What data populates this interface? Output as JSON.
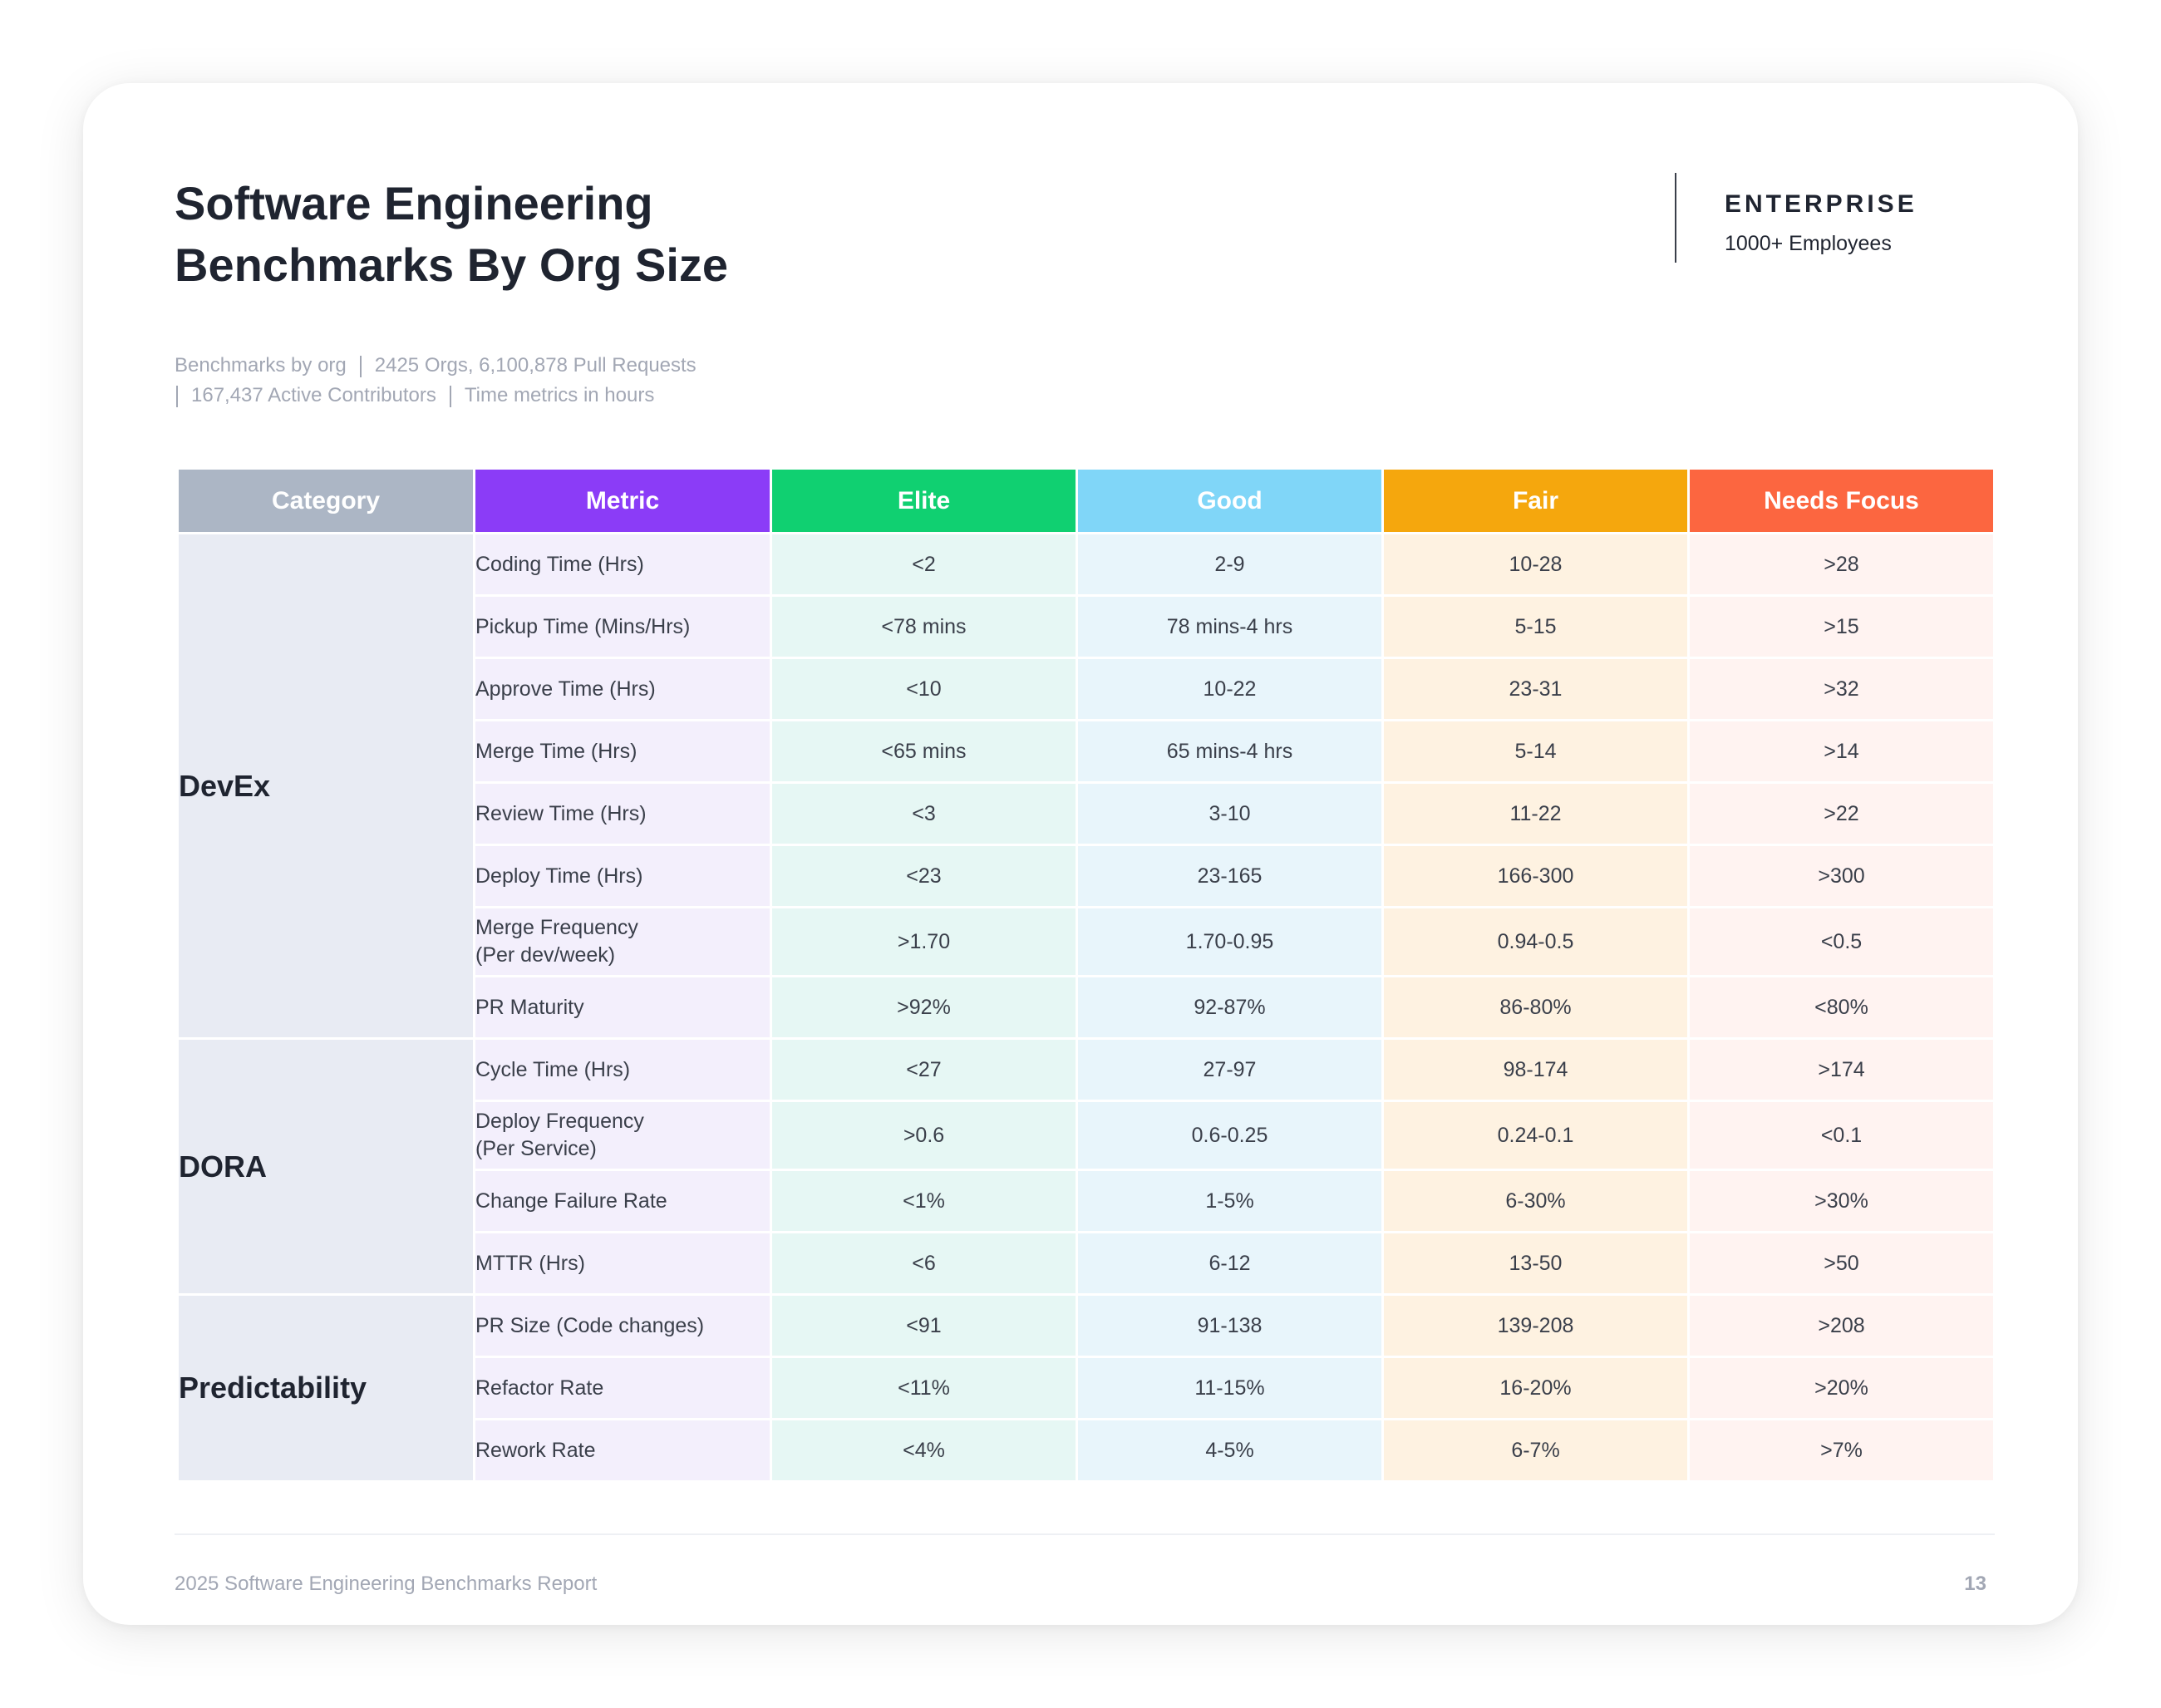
{
  "header": {
    "title_line1": "Software Engineering",
    "title_line2": "Benchmarks By Org Size",
    "badge_name": "ENTERPRISE",
    "badge_sub": "1000+ Employees"
  },
  "meta": {
    "item1": "Benchmarks by org",
    "item2": "2425 Orgs, 6,100,878 Pull Requests",
    "item3": "167,437 Active Contributors",
    "item4": "Time metrics in hours"
  },
  "table": {
    "columns": [
      "Category",
      "Metric",
      "Elite",
      "Good",
      "Fair",
      "Needs Focus"
    ],
    "column_colors": [
      "#acb6c5",
      "#8b3cf7",
      "#10d071",
      "#80d6f8",
      "#f5a70d",
      "#fc6640"
    ],
    "categories": [
      "DevEx",
      "DORA",
      "Predictability"
    ],
    "rows": [
      {
        "metric": "Coding Time (Hrs)",
        "elite": "<2",
        "good": "2-9",
        "fair": "10-28",
        "focus": ">28"
      },
      {
        "metric": "Pickup Time (Mins/Hrs)",
        "elite": "<78 mins",
        "good": "78 mins-4 hrs",
        "fair": "5-15",
        "focus": ">15"
      },
      {
        "metric": "Approve Time (Hrs)",
        "elite": "<10",
        "good": "10-22",
        "fair": "23-31",
        "focus": ">32"
      },
      {
        "metric": "Merge Time (Hrs)",
        "elite": "<65 mins",
        "good": "65 mins-4 hrs",
        "fair": "5-14",
        "focus": ">14"
      },
      {
        "metric": "Review Time (Hrs)",
        "elite": "<3",
        "good": "3-10",
        "fair": "11-22",
        "focus": ">22"
      },
      {
        "metric": "Deploy Time (Hrs)",
        "elite": "<23",
        "good": "23-165",
        "fair": "166-300",
        "focus": ">300"
      },
      {
        "metric": "Merge Frequency",
        "metric_sub": "(Per dev/week)",
        "elite": ">1.70",
        "good": "1.70-0.95",
        "fair": "0.94-0.5",
        "focus": "<0.5"
      },
      {
        "metric": "PR Maturity",
        "elite": ">92%",
        "good": "92-87%",
        "fair": "86-80%",
        "focus": "<80%"
      },
      {
        "metric": "Cycle Time (Hrs)",
        "elite": "<27",
        "good": "27-97",
        "fair": "98-174",
        "focus": ">174"
      },
      {
        "metric": "Deploy Frequency",
        "metric_sub": "(Per Service)",
        "elite": ">0.6",
        "good": "0.6-0.25",
        "fair": "0.24-0.1",
        "focus": "<0.1"
      },
      {
        "metric": "Change Failure Rate",
        "elite": "<1%",
        "good": "1-5%",
        "fair": "6-30%",
        "focus": ">30%"
      },
      {
        "metric": "MTTR (Hrs)",
        "elite": "<6",
        "good": "6-12",
        "fair": "13-50",
        "focus": ">50"
      },
      {
        "metric": "PR Size (Code changes)",
        "elite": "<91",
        "good": "91-138",
        "fair": "139-208",
        "focus": ">208"
      },
      {
        "metric": "Refactor Rate",
        "elite": "<11%",
        "good": "11-15%",
        "fair": "16-20%",
        "focus": ">20%"
      },
      {
        "metric": "Rework Rate",
        "elite": "<4%",
        "good": "4-5%",
        "fair": "6-7%",
        "focus": ">7%"
      }
    ]
  },
  "footer": {
    "report_name": "2025 Software Engineering Benchmarks Report",
    "page_number": "13"
  }
}
